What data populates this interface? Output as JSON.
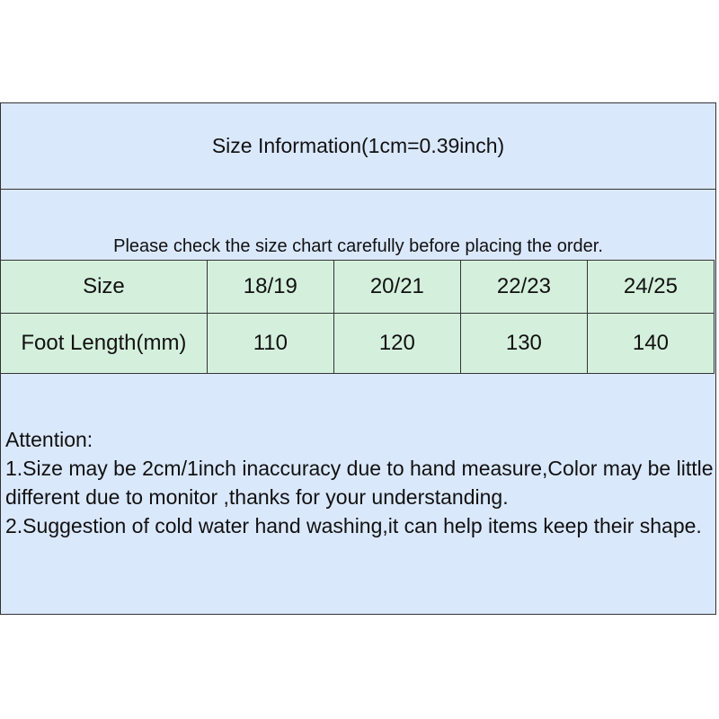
{
  "title": "Size Information(1cm=0.39inch)",
  "note": "Please check the size chart carefully before placing the order.",
  "table": {
    "rows": [
      [
        "Size",
        "18/19",
        "20/21",
        "22/23",
        "24/25"
      ],
      [
        "Foot Length(mm)",
        "110",
        "120",
        "130",
        "140"
      ]
    ]
  },
  "attention": {
    "heading": "Attention:",
    "lines": [
      "1.Size may be 2cm/1inch inaccuracy due to hand measure,Color may be little different due to monitor ,thanks for your understanding.",
      "2.Suggestion of cold water hand washing,it can help items keep their shape."
    ]
  },
  "colors": {
    "header_bg": "#dae8fc",
    "table_bg": "#d4f0dc"
  }
}
